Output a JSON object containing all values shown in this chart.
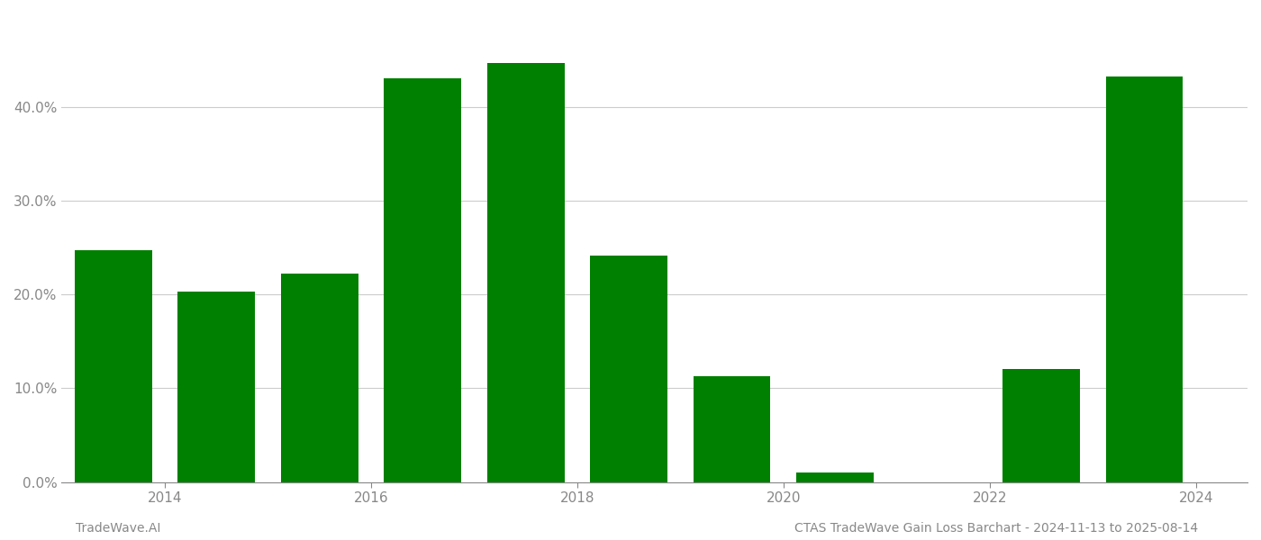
{
  "bar_positions": [
    2013.5,
    2014.5,
    2015.5,
    2016.5,
    2017.5,
    2018.5,
    2019.5,
    2020.5,
    2021.5,
    2022.5,
    2023.5
  ],
  "values": [
    0.247,
    0.203,
    0.222,
    0.431,
    0.447,
    0.242,
    0.113,
    0.01,
    0.0,
    0.121,
    0.433
  ],
  "bar_color": "#008000",
  "background_color": "#ffffff",
  "xtick_positions": [
    2014,
    2016,
    2018,
    2020,
    2022,
    2024
  ],
  "xtick_labels": [
    "2014",
    "2016",
    "2018",
    "2020",
    "2022",
    "2024"
  ],
  "yticks": [
    0.0,
    0.1,
    0.2,
    0.3,
    0.4
  ],
  "ytick_labels": [
    "0.0%",
    "10.0%",
    "20.0%",
    "30.0%",
    "40.0%"
  ],
  "xlim": [
    2013.0,
    2024.5
  ],
  "ylim": [
    0,
    0.5
  ],
  "bar_width": 0.75,
  "grid_color": "#cccccc",
  "tick_color": "#888888",
  "footer_left": "TradeWave.AI",
  "footer_right": "CTAS TradeWave Gain Loss Barchart - 2024-11-13 to 2025-08-14",
  "footer_fontsize": 10
}
